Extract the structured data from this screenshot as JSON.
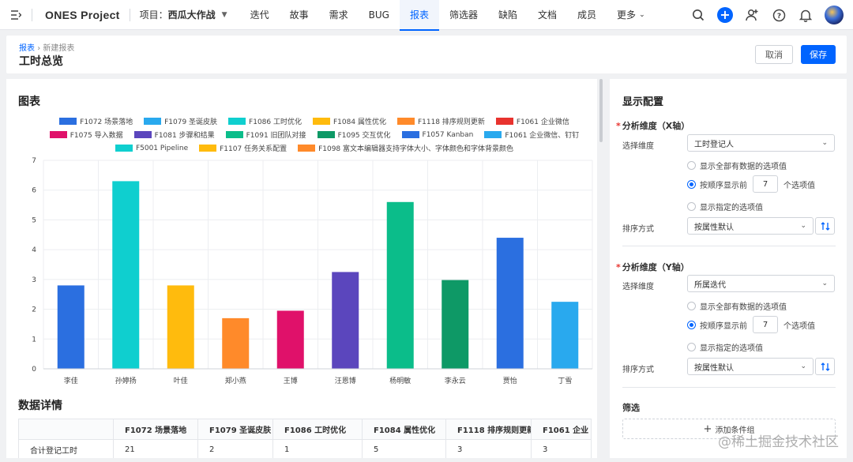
{
  "nav": {
    "brand": "ONES Project",
    "project_label": "项目：",
    "project_name": "西瓜大作战",
    "items": [
      "迭代",
      "故事",
      "需求",
      "BUG",
      "报表",
      "筛选器",
      "缺陷",
      "文档",
      "成员",
      "更多"
    ],
    "active": "报表"
  },
  "header": {
    "breadcrumb_root": "报表",
    "breadcrumb_sep": "›",
    "breadcrumb_current": "新建报表",
    "title": "工时总览",
    "cancel_label": "取消",
    "save_label": "保存"
  },
  "left": {
    "chart_title": "图表",
    "table_title": "数据详情"
  },
  "chart_data": {
    "type": "bar",
    "categories": [
      "李佳",
      "孙婷扬",
      "叶佳",
      "郑小燕",
      "王博",
      "汪恩博",
      "杨明敏",
      "李永云",
      "贾怡",
      "丁雪"
    ],
    "values": [
      2.8,
      6.3,
      2.8,
      1.7,
      1.95,
      3.25,
      5.6,
      2.98,
      4.4,
      2.25
    ],
    "bar_colors": [
      "#2b6fe0",
      "#0fcfcf",
      "#ffbb0d",
      "#ff8a2a",
      "#e0116a",
      "#5b46bd",
      "#0bbd8a",
      "#0e9966",
      "#2b6fe0",
      "#29a9ee"
    ],
    "ylim": [
      0,
      7
    ],
    "yticks": [
      0,
      1,
      2,
      3,
      4,
      5,
      6,
      7
    ],
    "grid": true,
    "legend_position": "top",
    "legend": [
      {
        "name": "F1072 场景落地",
        "color": "#2b6fe0"
      },
      {
        "name": "F1079 圣诞皮肤",
        "color": "#29a9ee"
      },
      {
        "name": "F1086 工时优化",
        "color": "#0fcfcf"
      },
      {
        "name": "F1084 属性优化",
        "color": "#ffbb0d"
      },
      {
        "name": "F1118 排序规则更新",
        "color": "#ff8a2a"
      },
      {
        "name": "F1061 企业微信",
        "color": "#e8332e"
      },
      {
        "name": "F1075 导入数据",
        "color": "#e0116a"
      },
      {
        "name": "F1081 步骤和结果",
        "color": "#5b46bd"
      },
      {
        "name": "F1091 旧团队对接",
        "color": "#0bbd8a"
      },
      {
        "name": "F1095 交互优化",
        "color": "#0e9966"
      },
      {
        "name": "F1057 Kanban",
        "color": "#2b6fe0"
      },
      {
        "name": "F1061 企业微信、钉钉",
        "color": "#29a9ee"
      },
      {
        "name": "F5001 Pipeline",
        "color": "#0fcfcf"
      },
      {
        "name": "F1107 任务关系配置",
        "color": "#ffbb0d"
      },
      {
        "name": "F1098 富文本编辑器支持字体大小、字体颜色和字体背景颜色",
        "color": "#ff8a2a"
      }
    ]
  },
  "table": {
    "headers": [
      "",
      "F1072 场景落地",
      "F1079 圣诞皮肤",
      "F1086 工时优化",
      "F1084 属性优化",
      "F1118 排序规则更新",
      "F1061 企业"
    ],
    "rows": [
      [
        "合计登记工时",
        "21",
        "2",
        "1",
        "5",
        "3",
        "3"
      ]
    ]
  },
  "config": {
    "title": "显示配置",
    "x_axis": {
      "group_label": "分析维度（X轴）",
      "select_label": "选择维度",
      "select_value": "工时登记人",
      "option_all": "显示全部有数据的选项值",
      "option_top_prefix": "按顺序显示前",
      "option_top_value": "7",
      "option_top_suffix": "个选项值",
      "option_specified": "显示指定的选项值",
      "sort_label": "排序方式",
      "sort_value": "按属性默认"
    },
    "y_axis": {
      "group_label": "分析维度（Y轴）",
      "select_label": "选择维度",
      "select_value": "所属迭代",
      "option_all": "显示全部有数据的选项值",
      "option_top_prefix": "按顺序显示前",
      "option_top_value": "7",
      "option_top_suffix": "个选项值",
      "option_specified": "显示指定的选项值",
      "sort_label": "排序方式",
      "sort_value": "按属性默认"
    },
    "filter_label": "筛选",
    "add_condition": "添加条件组"
  },
  "watermark": "@稀土掘金技术社区",
  "colors": {
    "primary": "#0064ff",
    "required": "#e8332e"
  }
}
